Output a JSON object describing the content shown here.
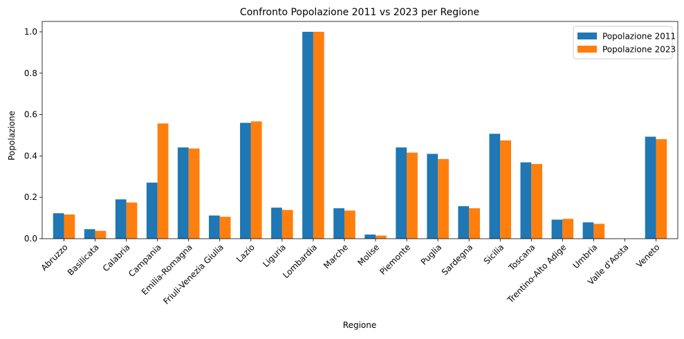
{
  "colors": {
    "s2011": "#1f77b4",
    "s2023": "#ff7f0e"
  },
  "chart_data": {
    "type": "bar",
    "title": "Confronto Popolazione 2011 vs 2023 per Regione",
    "xlabel": "Regione",
    "ylabel": "Popolazione",
    "ylim": [
      0,
      1.05
    ],
    "yticks": [
      0.0,
      0.2,
      0.4,
      0.6,
      0.8,
      1.0
    ],
    "ytick_labels": [
      "0.0",
      "0.2",
      "0.4",
      "0.6",
      "0.8",
      "1.0"
    ],
    "grid": false,
    "legend_position": "top-right",
    "categories": [
      "Abruzzo",
      "Basilicata",
      "Calabria",
      "Campania",
      "Emilia-Romagna",
      "Friuli-Venezia Giulia",
      "Lazio",
      "Liguria",
      "Lombardia",
      "Marche",
      "Molise",
      "Piemonte",
      "Puglia",
      "Sardegna",
      "Sicilia",
      "Toscana",
      "Trentino-Alto Adige",
      "Umbria",
      "Valle d'Aosta",
      "Veneto"
    ],
    "series": [
      {
        "name": "Popolazione 2011",
        "values": [
          0.123,
          0.046,
          0.19,
          0.271,
          0.441,
          0.112,
          0.56,
          0.15,
          1.0,
          0.147,
          0.02,
          0.441,
          0.41,
          0.157,
          0.507,
          0.369,
          0.092,
          0.079,
          0.0,
          0.493
        ]
      },
      {
        "name": "Popolazione 2023",
        "values": [
          0.117,
          0.038,
          0.175,
          0.557,
          0.436,
          0.106,
          0.567,
          0.139,
          1.0,
          0.136,
          0.015,
          0.416,
          0.385,
          0.147,
          0.475,
          0.361,
          0.096,
          0.072,
          0.0,
          0.481
        ]
      }
    ]
  }
}
